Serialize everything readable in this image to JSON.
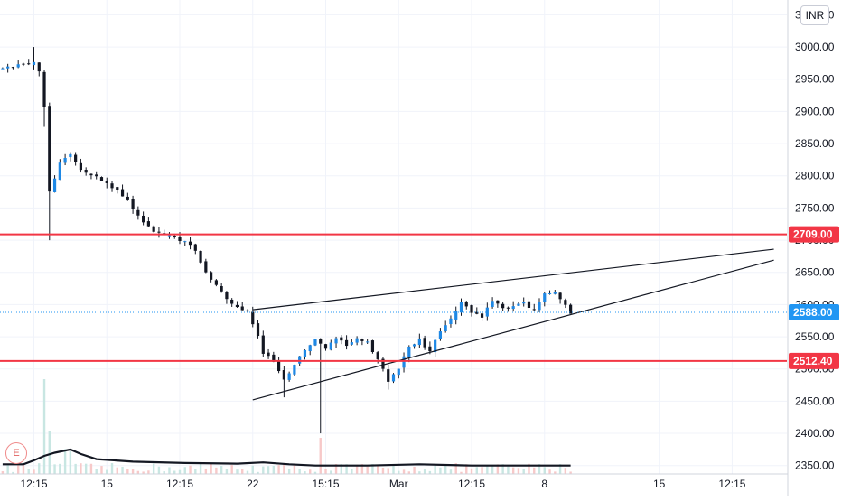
{
  "chart_data": {
    "type": "candlestick",
    "currency": "INR",
    "event_marker": "E",
    "y_ticks": [
      3050,
      3000,
      2950,
      2900,
      2850,
      2800,
      2750,
      2700,
      2650,
      2600,
      2550,
      2500,
      2450,
      2400,
      2350
    ],
    "y_tick_labels": [
      "3050.00",
      "3000.00",
      "2950.00",
      "2900.00",
      "2850.00",
      "2800.00",
      "2750.00",
      "2700.00",
      "2650.00",
      "2600.00",
      "2550.00",
      "2500.00",
      "2450.00",
      "2400.00",
      "2350.00"
    ],
    "ylim": [
      2337,
      3073
    ],
    "x_ticks": [
      "12:15",
      "15",
      "12:15",
      "22",
      "15:15",
      "Mar",
      "12:15",
      "8",
      "15",
      "12:15"
    ],
    "x_tick_bar_index": [
      6,
      20,
      34,
      48,
      62,
      76,
      90,
      104,
      126,
      140
    ],
    "bar_count": 151,
    "last_bar_index": 109,
    "horizontal_levels": [
      {
        "value": 2709.0,
        "label": "2709.00",
        "color": "#f23645"
      },
      {
        "value": 2512.4,
        "label": "2512.40",
        "color": "#f23645"
      }
    ],
    "last_price": {
      "value": 2588.0,
      "label": "2588.00",
      "color": "#2196f3"
    },
    "trendlines": [
      {
        "name": "upper-wedge-line",
        "from": [
          48,
          2592
        ],
        "to": [
          148,
          2686
        ]
      },
      {
        "name": "lower-wedge-line",
        "from": [
          48,
          2452
        ],
        "to": [
          148,
          2669
        ]
      }
    ],
    "price_anchors": [
      [
        0,
        2965
      ],
      [
        3,
        2972
      ],
      [
        6,
        2978
      ],
      [
        7,
        2960
      ],
      [
        8,
        2905
      ],
      [
        9,
        2775
      ],
      [
        11,
        2822
      ],
      [
        13,
        2834
      ],
      [
        15,
        2812
      ],
      [
        18,
        2798
      ],
      [
        21,
        2782
      ],
      [
        24,
        2762
      ],
      [
        27,
        2728
      ],
      [
        29,
        2712
      ],
      [
        32,
        2708
      ],
      [
        35,
        2698
      ],
      [
        37,
        2685
      ],
      [
        39,
        2648
      ],
      [
        41,
        2630
      ],
      [
        43,
        2608
      ],
      [
        45,
        2596
      ],
      [
        47,
        2590
      ],
      [
        49,
        2550
      ],
      [
        50,
        2525
      ],
      [
        52,
        2512
      ],
      [
        54,
        2482
      ],
      [
        56,
        2508
      ],
      [
        58,
        2530
      ],
      [
        60,
        2545
      ],
      [
        62,
        2532
      ],
      [
        64,
        2545
      ],
      [
        66,
        2538
      ],
      [
        68,
        2545
      ],
      [
        70,
        2540
      ],
      [
        72,
        2516
      ],
      [
        73,
        2500
      ],
      [
        74,
        2478
      ],
      [
        76,
        2502
      ],
      [
        78,
        2535
      ],
      [
        80,
        2545
      ],
      [
        82,
        2525
      ],
      [
        84,
        2560
      ],
      [
        86,
        2580
      ],
      [
        88,
        2602
      ],
      [
        90,
        2588
      ],
      [
        92,
        2578
      ],
      [
        94,
        2608
      ],
      [
        96,
        2596
      ],
      [
        98,
        2595
      ],
      [
        100,
        2602
      ],
      [
        102,
        2592
      ],
      [
        104,
        2615
      ],
      [
        106,
        2620
      ],
      [
        107,
        2608
      ],
      [
        108,
        2598
      ],
      [
        109,
        2588
      ]
    ],
    "volume_avg_anchors": [
      [
        0,
        2352
      ],
      [
        2,
        2352
      ],
      [
        4,
        2352
      ],
      [
        6,
        2358
      ],
      [
        8,
        2365
      ],
      [
        10,
        2370
      ],
      [
        13,
        2375
      ],
      [
        15,
        2368
      ],
      [
        18,
        2360
      ],
      [
        25,
        2356
      ],
      [
        35,
        2354
      ],
      [
        45,
        2353
      ],
      [
        50,
        2355
      ],
      [
        55,
        2352
      ],
      [
        60,
        2350
      ],
      [
        70,
        2350
      ],
      [
        80,
        2352
      ],
      [
        90,
        2350
      ],
      [
        100,
        2350
      ],
      [
        109,
        2350
      ]
    ]
  }
}
